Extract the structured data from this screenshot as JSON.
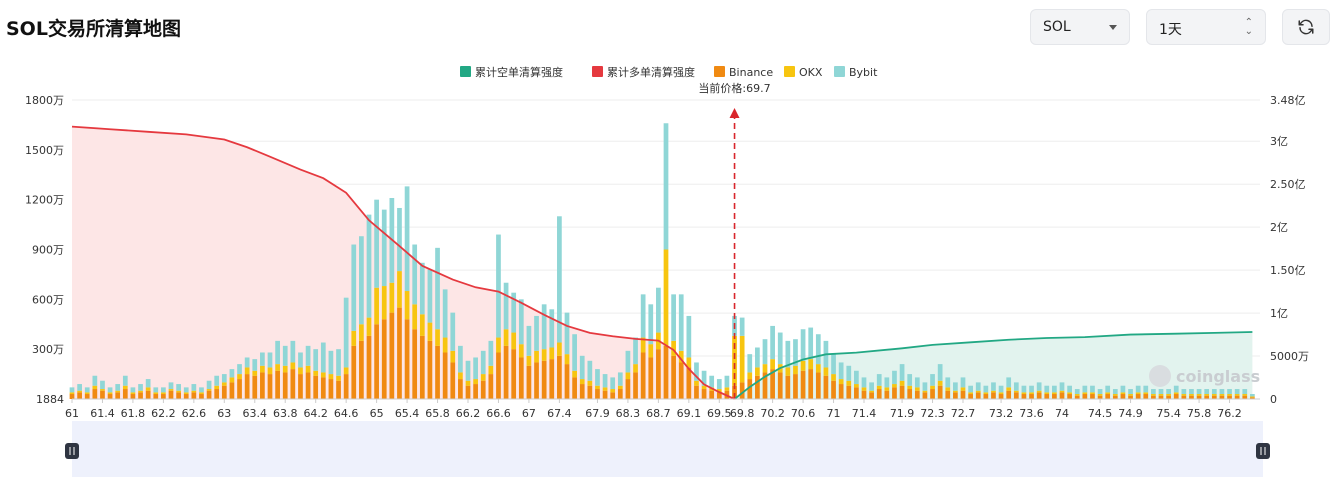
{
  "header": {
    "title": "SOL交易所清算地图",
    "coin_select": "SOL",
    "range_select": "1天"
  },
  "colors": {
    "short_cum": "#22a884",
    "long_cum": "#e5393f",
    "binance": "#f08a12",
    "okx": "#f7c510",
    "bybit": "#8fd6d6",
    "long_area": "#fde6e6",
    "short_area": "#e2f3ee"
  },
  "chart_data": {
    "type": "bar",
    "legend": [
      "累计空单清算强度",
      "累计多单清算强度",
      "Binance",
      "OKX",
      "Bybit"
    ],
    "legend_position": "top-center",
    "current_price_label": "当前价格:69.7",
    "current_price": 69.7,
    "x_tick_labels": [
      "61",
      "61.4",
      "61.8",
      "62.2",
      "62.6",
      "63",
      "63.4",
      "63.8",
      "64.2",
      "64.6",
      "65",
      "65.4",
      "65.8",
      "66.2",
      "66.6",
      "67",
      "67.4",
      "67.9",
      "68.3",
      "68.7",
      "69.1",
      "69.5",
      "69.8",
      "70.2",
      "70.6",
      "71",
      "71.4",
      "71.9",
      "72.3",
      "72.7",
      "73.2",
      "73.6",
      "74",
      "74.5",
      "74.9",
      "75.4",
      "75.8",
      "76.2"
    ],
    "y_left_ticks": [
      "1884",
      "300万",
      "600万",
      "900万",
      "1200万",
      "1500万",
      "1800万"
    ],
    "y_left_range": [
      0,
      18000000
    ],
    "y_right_ticks": [
      "0",
      "5000万",
      "1亿",
      "1.50亿",
      "2亿",
      "2.50亿",
      "3亿",
      "3.48亿"
    ],
    "y_right_range": [
      0,
      348000000
    ],
    "grid": true,
    "watermark": "coinglass",
    "bar_x": [
      61.0,
      61.1,
      61.2,
      61.3,
      61.4,
      61.5,
      61.6,
      61.7,
      61.8,
      61.9,
      62.0,
      62.1,
      62.2,
      62.3,
      62.4,
      62.5,
      62.6,
      62.7,
      62.8,
      62.9,
      63.0,
      63.1,
      63.2,
      63.3,
      63.4,
      63.5,
      63.6,
      63.7,
      63.8,
      63.9,
      64.0,
      64.1,
      64.2,
      64.3,
      64.4,
      64.5,
      64.6,
      64.7,
      64.8,
      64.9,
      65.0,
      65.1,
      65.2,
      65.3,
      65.4,
      65.5,
      65.6,
      65.7,
      65.8,
      65.9,
      66.0,
      66.1,
      66.2,
      66.3,
      66.4,
      66.5,
      66.6,
      66.7,
      66.8,
      66.9,
      67.0,
      67.1,
      67.2,
      67.3,
      67.4,
      67.5,
      67.6,
      67.7,
      67.8,
      67.9,
      68.0,
      68.1,
      68.2,
      68.3,
      68.4,
      68.5,
      68.6,
      68.7,
      68.8,
      68.9,
      69.0,
      69.1,
      69.2,
      69.3,
      69.4,
      69.5,
      69.6,
      69.7,
      69.8,
      69.9,
      70.0,
      70.1,
      70.2,
      70.3,
      70.4,
      70.5,
      70.6,
      70.7,
      70.8,
      70.9,
      71.0,
      71.1,
      71.2,
      71.3,
      71.4,
      71.5,
      71.6,
      71.7,
      71.8,
      71.9,
      72.0,
      72.1,
      72.2,
      72.3,
      72.4,
      72.5,
      72.6,
      72.7,
      72.8,
      72.9,
      73.0,
      73.1,
      73.2,
      73.3,
      73.4,
      73.5,
      73.6,
      73.7,
      73.8,
      73.9,
      74.0,
      74.1,
      74.2,
      74.3,
      74.4,
      74.5,
      74.6,
      74.7,
      74.8,
      74.9,
      75.0,
      75.1,
      75.2,
      75.3,
      75.4,
      75.5,
      75.6,
      75.7,
      75.8,
      75.9,
      76.0,
      76.1,
      76.2,
      76.3,
      76.4,
      76.5
    ],
    "series": [
      {
        "name": "Binance",
        "values": [
          0.3,
          0.4,
          0.3,
          0.6,
          0.5,
          0.3,
          0.4,
          0.6,
          0.3,
          0.4,
          0.5,
          0.3,
          0.3,
          0.5,
          0.4,
          0.3,
          0.4,
          0.3,
          0.5,
          0.6,
          0.8,
          1.0,
          1.2,
          1.5,
          1.4,
          1.6,
          1.5,
          1.7,
          1.6,
          1.8,
          1.5,
          1.6,
          1.4,
          1.3,
          1.2,
          1.1,
          1.5,
          3.2,
          3.5,
          3.8,
          4.5,
          4.8,
          5.2,
          5.5,
          4.8,
          4.2,
          3.8,
          3.5,
          3.2,
          2.8,
          2.2,
          1.2,
          0.8,
          0.9,
          1.1,
          1.5,
          2.8,
          3.2,
          3.0,
          2.5,
          2.0,
          2.2,
          2.3,
          2.4,
          2.6,
          2.1,
          1.3,
          0.9,
          0.8,
          0.6,
          0.5,
          0.4,
          0.6,
          1.2,
          1.6,
          2.8,
          2.5,
          3.0,
          3.2,
          2.6,
          2.2,
          1.9,
          0.8,
          0.6,
          0.5,
          0.4,
          0.5,
          0.8,
          1.0,
          1.2,
          1.4,
          1.6,
          1.8,
          1.6,
          1.4,
          1.5,
          1.7,
          1.8,
          1.6,
          1.4,
          1.1,
          0.9,
          0.8,
          0.7,
          0.5,
          0.4,
          0.6,
          0.5,
          0.7,
          0.8,
          0.6,
          0.5,
          0.4,
          0.6,
          0.8,
          0.5,
          0.4,
          0.5,
          0.3,
          0.4,
          0.3,
          0.4,
          0.3,
          0.5,
          0.4,
          0.3,
          0.3,
          0.4,
          0.3,
          0.3,
          0.4,
          0.3,
          0.2,
          0.3,
          0.3,
          0.2,
          0.3,
          0.2,
          0.3,
          0.2,
          0.3,
          0.3,
          0.2,
          0.2,
          0.2,
          0.3,
          0.2,
          0.2,
          0.2,
          0.2,
          0.2,
          0.2,
          0.2,
          0.2,
          0.2,
          0.1
        ]
      },
      {
        "name": "OKX",
        "values": [
          0.1,
          0.1,
          0.1,
          0.2,
          0.1,
          0.1,
          0.1,
          0.2,
          0.1,
          0.1,
          0.2,
          0.1,
          0.1,
          0.1,
          0.1,
          0.1,
          0.1,
          0.1,
          0.1,
          0.2,
          0.2,
          0.3,
          0.3,
          0.4,
          0.3,
          0.4,
          0.4,
          0.4,
          0.4,
          0.4,
          0.4,
          0.4,
          0.3,
          0.3,
          0.3,
          0.3,
          0.4,
          0.9,
          1.0,
          1.1,
          2.2,
          2.0,
          1.8,
          2.2,
          1.7,
          1.5,
          1.3,
          1.1,
          1.0,
          0.9,
          0.7,
          0.4,
          0.3,
          0.3,
          0.4,
          0.5,
          0.9,
          1.0,
          1.0,
          0.8,
          0.6,
          0.7,
          0.7,
          0.7,
          0.8,
          0.6,
          0.4,
          0.3,
          0.3,
          0.2,
          0.2,
          0.2,
          0.2,
          0.4,
          0.5,
          0.9,
          0.8,
          1.0,
          5.8,
          0.9,
          0.7,
          0.6,
          0.3,
          0.2,
          0.2,
          0.2,
          0.2,
          3.0,
          2.8,
          0.4,
          0.5,
          0.5,
          0.6,
          0.5,
          0.5,
          0.5,
          0.6,
          0.6,
          0.5,
          0.5,
          0.4,
          0.3,
          0.3,
          0.2,
          0.2,
          0.1,
          0.2,
          0.2,
          0.2,
          0.3,
          0.2,
          0.2,
          0.1,
          0.2,
          0.3,
          0.2,
          0.1,
          0.2,
          0.1,
          0.1,
          0.1,
          0.1,
          0.1,
          0.2,
          0.1,
          0.1,
          0.1,
          0.1,
          0.1,
          0.1,
          0.1,
          0.1,
          0.1,
          0.1,
          0.1,
          0.1,
          0.1,
          0.1,
          0.1,
          0.1,
          0.1,
          0.1,
          0.1,
          0.1,
          0.1,
          0.1,
          0.1,
          0.1,
          0.1,
          0.1,
          0.1,
          0.1,
          0.1,
          0.1,
          0.1,
          0.05
        ]
      },
      {
        "name": "Bybit",
        "values": [
          0.3,
          0.4,
          0.3,
          0.6,
          0.5,
          0.3,
          0.4,
          0.6,
          0.3,
          0.4,
          0.5,
          0.3,
          0.3,
          0.4,
          0.4,
          0.3,
          0.4,
          0.3,
          0.5,
          0.6,
          0.5,
          0.5,
          0.6,
          0.6,
          0.7,
          0.8,
          0.9,
          1.4,
          1.2,
          1.3,
          0.9,
          1.2,
          1.3,
          1.8,
          1.4,
          1.6,
          4.2,
          5.2,
          5.3,
          6.2,
          5.3,
          4.6,
          5.1,
          3.8,
          6.3,
          3.6,
          3.1,
          3.2,
          4.9,
          2.9,
          2.3,
          1.6,
          1.2,
          1.3,
          1.4,
          1.5,
          6.2,
          2.8,
          2.4,
          2.7,
          1.8,
          2.1,
          2.7,
          2.3,
          7.6,
          2.5,
          2.2,
          1.4,
          1.2,
          1.0,
          0.8,
          0.7,
          0.8,
          1.3,
          1.6,
          2.6,
          2.4,
          2.7,
          7.6,
          2.8,
          3.4,
          2.5,
          1.1,
          0.9,
          0.7,
          0.6,
          0.7,
          1.2,
          1.1,
          1.1,
          1.2,
          1.5,
          2.0,
          1.9,
          1.6,
          1.6,
          1.9,
          1.9,
          1.8,
          1.6,
          1.2,
          1.0,
          0.9,
          0.8,
          0.6,
          0.5,
          0.7,
          0.6,
          0.8,
          1.0,
          0.7,
          0.6,
          0.5,
          0.7,
          1.0,
          0.6,
          0.5,
          0.6,
          0.4,
          0.5,
          0.4,
          0.5,
          0.4,
          0.6,
          0.5,
          0.4,
          0.4,
          0.5,
          0.4,
          0.4,
          0.5,
          0.4,
          0.3,
          0.4,
          0.4,
          0.3,
          0.4,
          0.3,
          0.4,
          0.3,
          0.4,
          0.4,
          0.3,
          0.3,
          0.3,
          0.4,
          0.3,
          0.3,
          0.3,
          0.3,
          0.3,
          0.3,
          0.3,
          0.3,
          0.3,
          0.15
        ]
      },
      {
        "name": "累计多单清算强度",
        "x": [
          61.0,
          61.5,
          62.0,
          62.5,
          63.0,
          63.3,
          63.6,
          64.0,
          64.3,
          64.6,
          64.9,
          65.3,
          65.6,
          66.0,
          66.3,
          66.6,
          66.9,
          67.2,
          67.5,
          67.8,
          68.1,
          68.4,
          68.7,
          68.9,
          69.1,
          69.3,
          69.5,
          69.7
        ],
        "values": [
          317,
          314,
          311,
          308,
          302,
          293,
          282,
          267,
          257,
          240,
          208,
          178,
          155,
          139,
          130,
          125,
          112,
          98,
          85,
          77,
          73,
          70,
          68,
          57,
          35,
          17,
          8,
          0
        ]
      },
      {
        "name": "累计空单清算强度",
        "x": [
          69.7,
          69.9,
          70.1,
          70.3,
          70.6,
          70.9,
          71.3,
          71.9,
          72.3,
          72.8,
          73.3,
          73.8,
          74.3,
          74.9,
          75.5,
          76.0,
          76.5
        ],
        "values": [
          0,
          14,
          26,
          36,
          46,
          52,
          54,
          59,
          63,
          66,
          69,
          71,
          72,
          75,
          76,
          77,
          78
        ]
      }
    ]
  }
}
